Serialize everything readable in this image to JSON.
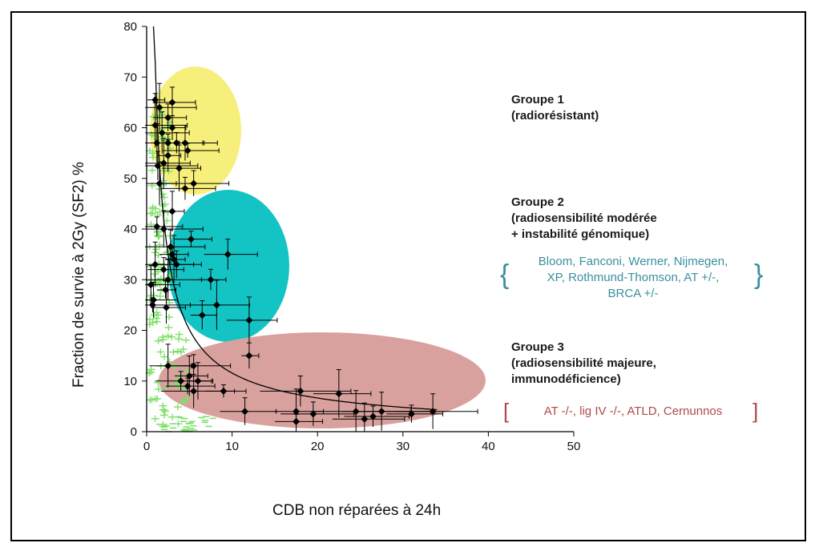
{
  "chart_data": {
    "type": "scatter",
    "xlabel": "CDB non réparées à 24h",
    "ylabel": "Fraction de survie à 2Gy (SF2) %",
    "xlim": [
      0,
      50
    ],
    "ylim": [
      0,
      80
    ],
    "x_ticks": [
      "0",
      "10",
      "20",
      "30",
      "40",
      "50"
    ],
    "y_ticks": [
      "0",
      "10",
      "20",
      "30",
      "40",
      "50",
      "60",
      "70",
      "80"
    ],
    "grid": false,
    "points": [
      {
        "x": 1.0,
        "y": 65.5
      },
      {
        "x": 3.0,
        "y": 65
      },
      {
        "x": 1.5,
        "y": 64
      },
      {
        "x": 2.5,
        "y": 62
      },
      {
        "x": 1.0,
        "y": 60.5
      },
      {
        "x": 3.0,
        "y": 60
      },
      {
        "x": 1.8,
        "y": 59
      },
      {
        "x": 3.5,
        "y": 57
      },
      {
        "x": 1.2,
        "y": 57
      },
      {
        "x": 2.5,
        "y": 57
      },
      {
        "x": 4.5,
        "y": 57
      },
      {
        "x": 4.8,
        "y": 55.5
      },
      {
        "x": 2.5,
        "y": 54.5
      },
      {
        "x": 2.0,
        "y": 53
      },
      {
        "x": 1.3,
        "y": 52.5
      },
      {
        "x": 3.8,
        "y": 52
      },
      {
        "x": 5.5,
        "y": 49
      },
      {
        "x": 1.5,
        "y": 49
      },
      {
        "x": 4.5,
        "y": 48
      },
      {
        "x": 3.0,
        "y": 43.5
      },
      {
        "x": 1.2,
        "y": 40.5
      },
      {
        "x": 2.0,
        "y": 40
      },
      {
        "x": 5.2,
        "y": 38
      },
      {
        "x": 2.8,
        "y": 36.5
      },
      {
        "x": 3.0,
        "y": 35
      },
      {
        "x": 9.5,
        "y": 35
      },
      {
        "x": 3.2,
        "y": 34
      },
      {
        "x": 3.5,
        "y": 33
      },
      {
        "x": 1.0,
        "y": 33
      },
      {
        "x": 2.0,
        "y": 32
      },
      {
        "x": 2.5,
        "y": 30
      },
      {
        "x": 7.5,
        "y": 30
      },
      {
        "x": 0.5,
        "y": 29
      },
      {
        "x": 2.2,
        "y": 28
      },
      {
        "x": 0.8,
        "y": 26
      },
      {
        "x": 0.7,
        "y": 25
      },
      {
        "x": 2.3,
        "y": 24.5
      },
      {
        "x": 8.2,
        "y": 25
      },
      {
        "x": 6.5,
        "y": 23
      },
      {
        "x": 12.0,
        "y": 22
      },
      {
        "x": 12.0,
        "y": 15
      },
      {
        "x": 2.5,
        "y": 13
      },
      {
        "x": 5.5,
        "y": 13
      },
      {
        "x": 5.0,
        "y": 11
      },
      {
        "x": 4.0,
        "y": 10
      },
      {
        "x": 6.0,
        "y": 10
      },
      {
        "x": 4.8,
        "y": 9
      },
      {
        "x": 5.5,
        "y": 8
      },
      {
        "x": 9.0,
        "y": 8
      },
      {
        "x": 18.0,
        "y": 8
      },
      {
        "x": 22.5,
        "y": 7.5
      },
      {
        "x": 11.5,
        "y": 4
      },
      {
        "x": 17.5,
        "y": 4
      },
      {
        "x": 19.5,
        "y": 3.5
      },
      {
        "x": 24.5,
        "y": 4
      },
      {
        "x": 26.5,
        "y": 3
      },
      {
        "x": 27.5,
        "y": 4
      },
      {
        "x": 31.0,
        "y": 3.5
      },
      {
        "x": 33.5,
        "y": 4
      },
      {
        "x": 17.5,
        "y": 2
      },
      {
        "x": 25.5,
        "y": 2.5
      }
    ],
    "fit_curve": {
      "formula": "y = 73 / x^0.8"
    },
    "annotations": [
      {
        "title_line1": "Groupe 1",
        "title_line2": "(radiorésistant)"
      },
      {
        "title_line1": "Groupe 2",
        "title_line2": "(radiosensibilité modérée",
        "title_line3": "+ instabilité génomique)",
        "list_line1": "Bloom, Fanconi, Werner, Nijmegen,",
        "list_line2": "XP, Rothmund-Thomson, AT +/-,",
        "list_line3": "BRCA +/-"
      },
      {
        "title_line1": "Groupe 3",
        "title_line2": "(radiosensibilité majeure,",
        "title_line3": "immunodéficience)",
        "list_line1": "AT -/-, lig IV -/-, ATLD, Cernunnos"
      }
    ],
    "colors": {
      "group1": "#f7ef7c",
      "group2": "#14c3c3",
      "group3": "#d9a19d",
      "points": "#000000",
      "secondary_series": "#7ee06b",
      "group2_list": "#3a8fa0",
      "group3_list": "#b04848"
    }
  }
}
